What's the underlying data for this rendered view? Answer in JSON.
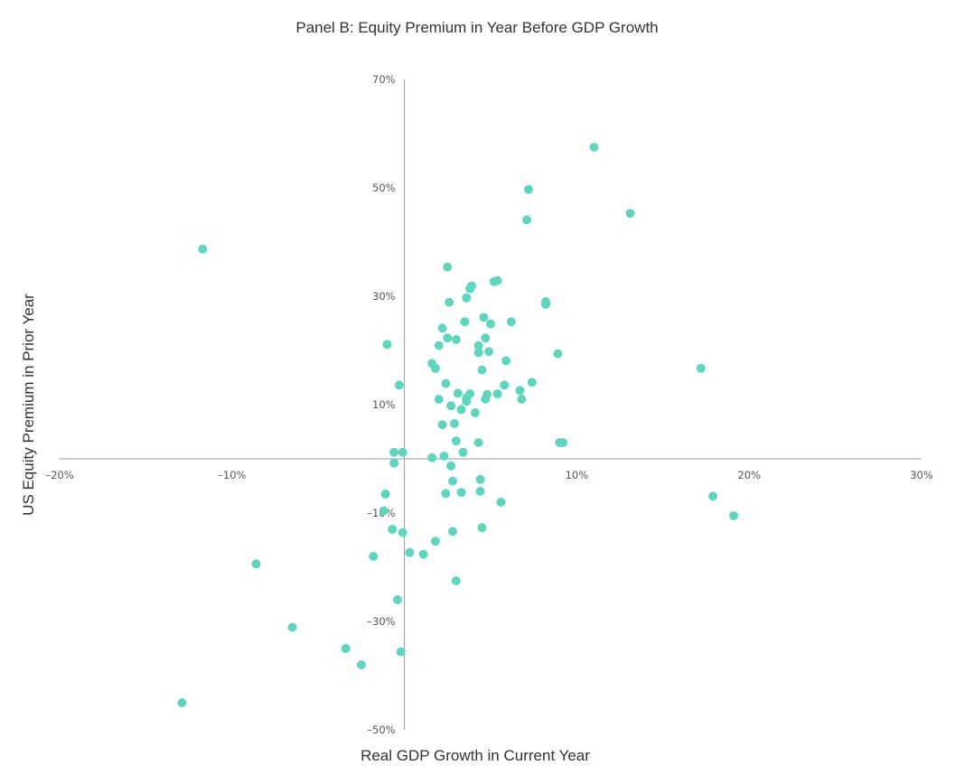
{
  "chart_data": {
    "type": "scatter",
    "title": "Panel B: Equity Premium in Year Before GDP Growth",
    "xlabel": "Real GDP Growth in Current Year",
    "ylabel": "US Equity Premium in Prior Year",
    "xlim": [
      -20,
      30
    ],
    "ylim": [
      -50,
      70
    ],
    "x_ticks": [
      {
        "value": -20,
        "label": "–20%"
      },
      {
        "value": -10,
        "label": "–10%"
      },
      {
        "value": 10,
        "label": "10%"
      },
      {
        "value": 20,
        "label": "20%"
      },
      {
        "value": 30,
        "label": "30%"
      }
    ],
    "y_ticks": [
      {
        "value": 70,
        "label": "70%"
      },
      {
        "value": 50,
        "label": "50%"
      },
      {
        "value": 30,
        "label": "30%"
      },
      {
        "value": 10,
        "label": "10%"
      },
      {
        "value": -10,
        "label": "–10%"
      },
      {
        "value": -30,
        "label": "–30%"
      },
      {
        "value": -50,
        "label": "–50%"
      }
    ],
    "grid": false,
    "marker_color": "#5dd6be",
    "series": [
      {
        "points": [
          {
            "x": 11.0,
            "y": 57.5
          },
          {
            "x": 7.2,
            "y": 49.7
          },
          {
            "x": 7.1,
            "y": 44.1
          },
          {
            "x": 13.1,
            "y": 45.3
          },
          {
            "x": -11.7,
            "y": 38.7
          },
          {
            "x": 2.5,
            "y": 35.4
          },
          {
            "x": 3.9,
            "y": 31.9
          },
          {
            "x": 3.8,
            "y": 31.4
          },
          {
            "x": 5.2,
            "y": 32.7
          },
          {
            "x": 5.4,
            "y": 32.9
          },
          {
            "x": 3.6,
            "y": 29.7
          },
          {
            "x": 2.6,
            "y": 28.9
          },
          {
            "x": 8.2,
            "y": 29.0
          },
          {
            "x": 8.2,
            "y": 28.5
          },
          {
            "x": 4.6,
            "y": 26.1
          },
          {
            "x": 3.5,
            "y": 25.3
          },
          {
            "x": 6.2,
            "y": 25.3
          },
          {
            "x": 5.0,
            "y": 24.9
          },
          {
            "x": 2.2,
            "y": 24.1
          },
          {
            "x": 2.5,
            "y": 22.3
          },
          {
            "x": 3.0,
            "y": 22.0
          },
          {
            "x": 4.7,
            "y": 22.3
          },
          {
            "x": -1.0,
            "y": 21.1
          },
          {
            "x": 2.0,
            "y": 20.9
          },
          {
            "x": 4.3,
            "y": 20.9
          },
          {
            "x": 4.3,
            "y": 19.6
          },
          {
            "x": 4.9,
            "y": 19.8
          },
          {
            "x": 8.9,
            "y": 19.4
          },
          {
            "x": 5.9,
            "y": 18.1
          },
          {
            "x": 1.6,
            "y": 17.6
          },
          {
            "x": 1.8,
            "y": 16.7
          },
          {
            "x": 4.5,
            "y": 16.4
          },
          {
            "x": 17.2,
            "y": 16.7
          },
          {
            "x": -0.3,
            "y": 13.6
          },
          {
            "x": 2.4,
            "y": 13.9
          },
          {
            "x": 5.8,
            "y": 13.6
          },
          {
            "x": 7.4,
            "y": 14.1
          },
          {
            "x": 6.7,
            "y": 12.6
          },
          {
            "x": 3.1,
            "y": 12.1
          },
          {
            "x": 3.8,
            "y": 12.0
          },
          {
            "x": 4.8,
            "y": 11.9
          },
          {
            "x": 5.4,
            "y": 12.0
          },
          {
            "x": 2.0,
            "y": 11.0
          },
          {
            "x": 3.6,
            "y": 11.2
          },
          {
            "x": 3.6,
            "y": 10.6
          },
          {
            "x": 4.7,
            "y": 11.0
          },
          {
            "x": 6.8,
            "y": 11.0
          },
          {
            "x": 2.7,
            "y": 9.8
          },
          {
            "x": 3.3,
            "y": 9.1
          },
          {
            "x": 4.1,
            "y": 8.5
          },
          {
            "x": 2.2,
            "y": 6.3
          },
          {
            "x": 2.9,
            "y": 6.5
          },
          {
            "x": 3.0,
            "y": 3.3
          },
          {
            "x": 4.3,
            "y": 3.0
          },
          {
            "x": 9.0,
            "y": 3.0
          },
          {
            "x": 9.2,
            "y": 3.0
          },
          {
            "x": -0.6,
            "y": 1.2
          },
          {
            "x": -0.1,
            "y": 1.2
          },
          {
            "x": 3.4,
            "y": 1.2
          },
          {
            "x": 1.6,
            "y": 0.2
          },
          {
            "x": 2.3,
            "y": 0.5
          },
          {
            "x": -0.6,
            "y": -0.8
          },
          {
            "x": 2.7,
            "y": -1.3
          },
          {
            "x": 2.8,
            "y": -4.1
          },
          {
            "x": 4.4,
            "y": -3.8
          },
          {
            "x": -1.1,
            "y": -6.5
          },
          {
            "x": 2.4,
            "y": -6.4
          },
          {
            "x": 3.3,
            "y": -6.2
          },
          {
            "x": 4.4,
            "y": -6.0
          },
          {
            "x": 5.6,
            "y": -8.0
          },
          {
            "x": 17.9,
            "y": -6.9
          },
          {
            "x": -1.2,
            "y": -9.6
          },
          {
            "x": 19.1,
            "y": -10.5
          },
          {
            "x": -0.7,
            "y": -13.0
          },
          {
            "x": -0.1,
            "y": -13.6
          },
          {
            "x": 2.8,
            "y": -13.4
          },
          {
            "x": 4.5,
            "y": -12.7
          },
          {
            "x": 1.8,
            "y": -15.2
          },
          {
            "x": -1.8,
            "y": -18.0
          },
          {
            "x": 0.3,
            "y": -17.3
          },
          {
            "x": 1.1,
            "y": -17.6
          },
          {
            "x": -8.6,
            "y": -19.4
          },
          {
            "x": 3.0,
            "y": -22.5
          },
          {
            "x": -0.4,
            "y": -26.0
          },
          {
            "x": -6.5,
            "y": -31.1
          },
          {
            "x": -3.4,
            "y": -35.0
          },
          {
            "x": -0.2,
            "y": -35.6
          },
          {
            "x": -2.5,
            "y": -38.0
          },
          {
            "x": -12.9,
            "y": -45.0
          }
        ]
      }
    ]
  }
}
